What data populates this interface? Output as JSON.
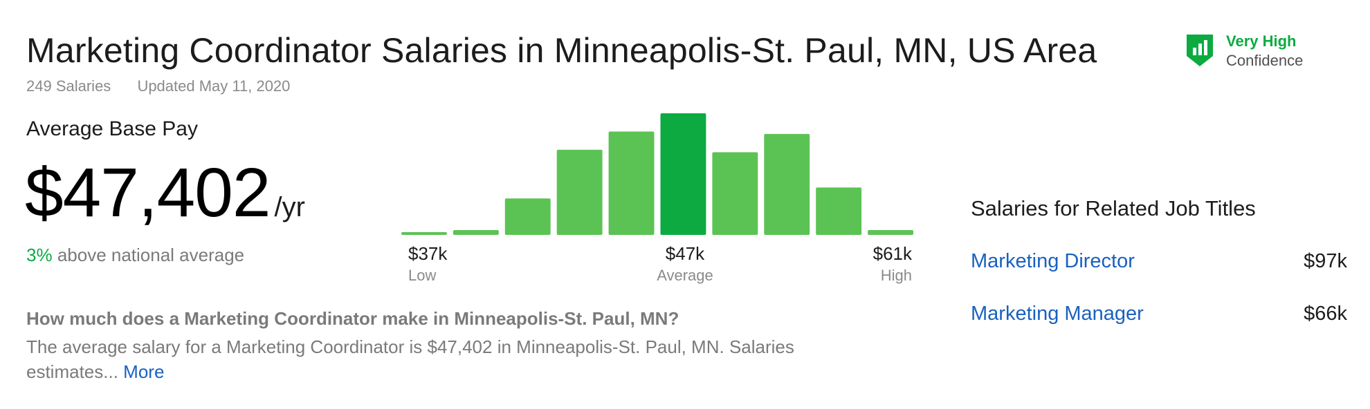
{
  "header": {
    "title": "Marketing Coordinator Salaries in Minneapolis-St. Paul, MN, US Area",
    "salary_count": "249 Salaries",
    "updated": "Updated May 11, 2020"
  },
  "confidence": {
    "level": "Very High",
    "label": "Confidence",
    "icon": "shield-bar-chart-icon",
    "color": "#0caa41"
  },
  "pay": {
    "label": "Average Base Pay",
    "amount": "$47,402",
    "unit": "/yr",
    "compare_pct": "3%",
    "compare_text": "above national average"
  },
  "chart_data": {
    "type": "bar",
    "title": "",
    "bar_heights_relative": [
      2,
      4,
      30,
      70,
      85,
      100,
      68,
      83,
      39,
      4
    ],
    "highlight_index": 5,
    "colors": {
      "bar": "#5bc353",
      "highlight": "#0caa41"
    },
    "axis_labels": [
      {
        "value": "$37k",
        "sub": "Low"
      },
      {
        "value": "$47k",
        "sub": "Average"
      },
      {
        "value": "$61k",
        "sub": "High"
      }
    ]
  },
  "faq": {
    "question": "How much does a Marketing Coordinator make in Minneapolis-St. Paul, MN?",
    "answer": "The average salary for a Marketing Coordinator is $47,402 in Minneapolis-St. Paul, MN. Salaries estimates...",
    "more_label": "More"
  },
  "related": {
    "title": "Salaries for Related Job Titles",
    "items": [
      {
        "title": "Marketing Director",
        "value": "$97k"
      },
      {
        "title": "Marketing Manager",
        "value": "$66k"
      }
    ]
  },
  "colors": {
    "accent_green": "#0caa41",
    "link_blue": "#1861bf"
  }
}
